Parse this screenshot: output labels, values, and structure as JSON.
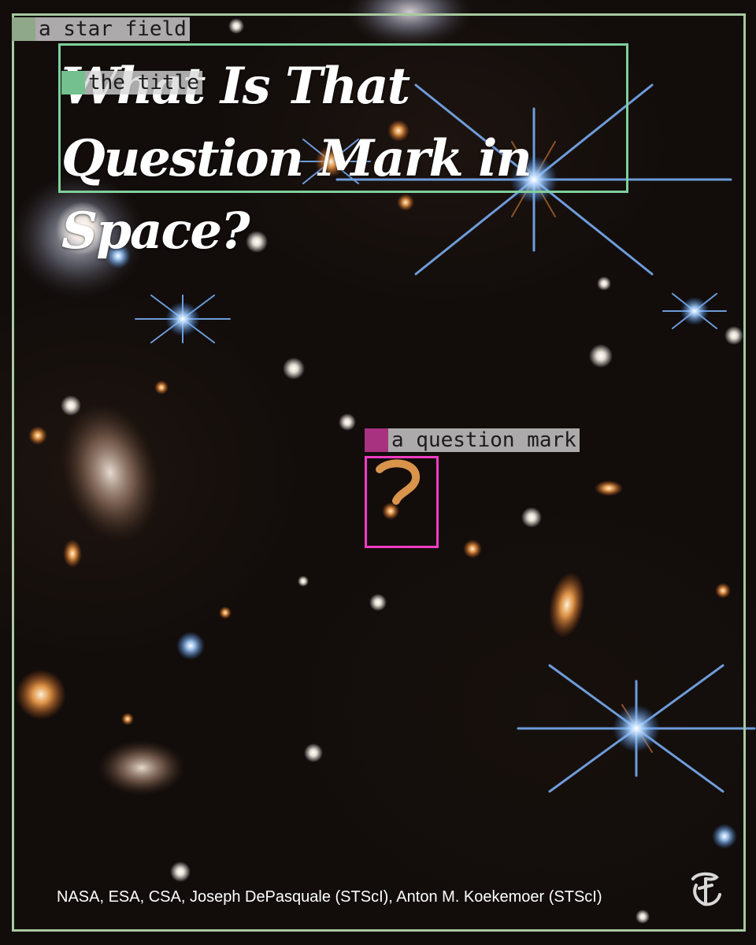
{
  "title": "What Is That Question Mark in Space?",
  "annotations": {
    "star_field": "a star field",
    "title": "the title",
    "question_mark": "a question mark"
  },
  "credit": "NASA, ESA, CSA, Joseph DePasquale (STScI), Anton M. Koekemoer (STScI)",
  "logo": "nyt-t-logo",
  "colors": {
    "star_field_box": "#a7c99e",
    "title_box": "#7fcf9b",
    "question_mark_box": "#f03cc3",
    "background": "#120d0b"
  }
}
